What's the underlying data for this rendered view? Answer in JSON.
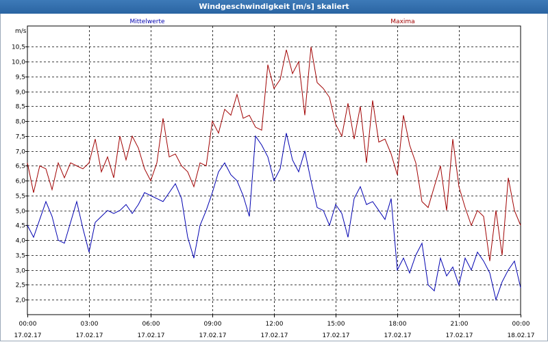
{
  "window": {
    "title": "Windgeschwindigkeit [m/s] skaliert"
  },
  "colors": {
    "mean": "#0000b0",
    "max": "#a00000",
    "grid": "#000000",
    "background": "#ffffff"
  },
  "chart_data": {
    "type": "line",
    "title": "Windgeschwindigkeit [m/s] skaliert",
    "ylabel": "m/s",
    "xlabel": "",
    "ylim": [
      1.5,
      11.2
    ],
    "yticks": [
      "2,0",
      "2,5",
      "3,0",
      "3,5",
      "4,0",
      "4,5",
      "5,0",
      "5,5",
      "6,0",
      "6,5",
      "7,0",
      "7,5",
      "8,0",
      "8,5",
      "9,0",
      "9,5",
      "10,0",
      "10,5"
    ],
    "ytick_values": [
      2.0,
      2.5,
      3.0,
      3.5,
      4.0,
      4.5,
      5.0,
      5.5,
      6.0,
      6.5,
      7.0,
      7.5,
      8.0,
      8.5,
      9.0,
      9.5,
      10.0,
      10.5
    ],
    "xlim": [
      0,
      24
    ],
    "xticks": [
      {
        "time": "00:00",
        "date": "17.02.17",
        "hour": 0
      },
      {
        "time": "03:00",
        "date": "17.02.17",
        "hour": 3
      },
      {
        "time": "06:00",
        "date": "17.02.17",
        "hour": 6
      },
      {
        "time": "09:00",
        "date": "17.02.17",
        "hour": 9
      },
      {
        "time": "12:00",
        "date": "17.02.17",
        "hour": 12
      },
      {
        "time": "15:00",
        "date": "17.02.17",
        "hour": 15
      },
      {
        "time": "18:00",
        "date": "17.02.17",
        "hour": 18
      },
      {
        "time": "21:00",
        "date": "17.02.17",
        "hour": 21
      },
      {
        "time": "00:00",
        "date": "18.02.17",
        "hour": 24
      }
    ],
    "grid": true,
    "series": [
      {
        "name": "Mittelwerte",
        "color": "#0000b0",
        "x": [
          0,
          0.3,
          0.6,
          0.9,
          1.2,
          1.5,
          1.8,
          2.1,
          2.4,
          2.7,
          3.0,
          3.3,
          3.6,
          3.9,
          4.2,
          4.5,
          4.8,
          5.1,
          5.4,
          5.7,
          6.0,
          6.3,
          6.6,
          6.9,
          7.2,
          7.5,
          7.8,
          8.1,
          8.4,
          8.7,
          9.0,
          9.3,
          9.6,
          9.9,
          10.2,
          10.5,
          10.8,
          11.1,
          11.4,
          11.7,
          12.0,
          12.3,
          12.6,
          12.9,
          13.2,
          13.5,
          13.8,
          14.1,
          14.4,
          14.7,
          15.0,
          15.3,
          15.6,
          15.9,
          16.2,
          16.5,
          16.8,
          17.1,
          17.4,
          17.7,
          18.0,
          18.3,
          18.6,
          18.9,
          19.2,
          19.5,
          19.8,
          20.1,
          20.4,
          20.7,
          21.0,
          21.3,
          21.6,
          21.9,
          22.2,
          22.5,
          22.8,
          23.1,
          23.4,
          23.7,
          24.0
        ],
        "values": [
          4.5,
          4.1,
          4.7,
          5.3,
          4.8,
          4.0,
          3.9,
          4.6,
          5.3,
          4.4,
          3.6,
          4.6,
          4.8,
          5.0,
          4.9,
          5.0,
          5.2,
          4.9,
          5.2,
          5.6,
          5.5,
          5.4,
          5.3,
          5.6,
          5.9,
          5.4,
          4.1,
          3.4,
          4.5,
          5.0,
          5.6,
          6.3,
          6.6,
          6.2,
          6.0,
          5.5,
          4.8,
          7.5,
          7.2,
          6.8,
          6.0,
          6.4,
          7.6,
          6.7,
          6.3,
          7.0,
          6.0,
          5.1,
          5.0,
          4.5,
          5.2,
          4.9,
          4.1,
          5.4,
          5.8,
          5.2,
          5.3,
          5.0,
          4.7,
          5.4,
          3.0,
          3.4,
          2.9,
          3.5,
          3.9,
          2.5,
          2.3,
          3.4,
          2.8,
          3.1,
          2.5,
          3.4,
          3.0,
          3.6,
          3.3,
          2.9,
          2.0,
          2.6,
          3.0,
          3.3,
          2.4
        ]
      },
      {
        "name": "Maxima",
        "color": "#a00000",
        "x": [
          0,
          0.3,
          0.6,
          0.9,
          1.2,
          1.5,
          1.8,
          2.1,
          2.4,
          2.7,
          3.0,
          3.3,
          3.6,
          3.9,
          4.2,
          4.5,
          4.8,
          5.1,
          5.4,
          5.7,
          6.0,
          6.3,
          6.6,
          6.9,
          7.2,
          7.5,
          7.8,
          8.1,
          8.4,
          8.7,
          9.0,
          9.3,
          9.6,
          9.9,
          10.2,
          10.5,
          10.8,
          11.1,
          11.4,
          11.7,
          12.0,
          12.3,
          12.6,
          12.9,
          13.2,
          13.5,
          13.8,
          14.1,
          14.4,
          14.7,
          15.0,
          15.3,
          15.6,
          15.9,
          16.2,
          16.5,
          16.8,
          17.1,
          17.4,
          17.7,
          18.0,
          18.3,
          18.6,
          18.9,
          19.2,
          19.5,
          19.8,
          20.1,
          20.4,
          20.7,
          21.0,
          21.3,
          21.6,
          21.9,
          22.2,
          22.5,
          22.8,
          23.1,
          23.4,
          23.7,
          24.0
        ],
        "values": [
          6.6,
          5.6,
          6.5,
          6.4,
          5.7,
          6.6,
          6.1,
          6.6,
          6.5,
          6.4,
          6.6,
          7.4,
          6.3,
          6.8,
          6.1,
          7.5,
          6.7,
          7.5,
          7.1,
          6.4,
          6.0,
          6.6,
          8.1,
          6.8,
          6.9,
          6.5,
          6.3,
          5.8,
          6.6,
          6.5,
          8.0,
          7.6,
          8.4,
          8.2,
          8.9,
          8.1,
          8.2,
          7.8,
          7.7,
          9.9,
          9.1,
          9.4,
          10.4,
          9.6,
          10.0,
          8.2,
          10.5,
          9.3,
          9.1,
          8.8,
          7.9,
          7.5,
          8.6,
          7.4,
          8.5,
          6.6,
          8.7,
          7.3,
          7.4,
          6.9,
          6.2,
          8.2,
          7.2,
          6.6,
          5.3,
          5.1,
          5.8,
          6.5,
          5.0,
          7.4,
          5.8,
          5.1,
          4.5,
          5.0,
          4.8,
          3.3,
          5.0,
          3.5,
          6.1,
          5.0,
          4.5
        ]
      }
    ]
  }
}
